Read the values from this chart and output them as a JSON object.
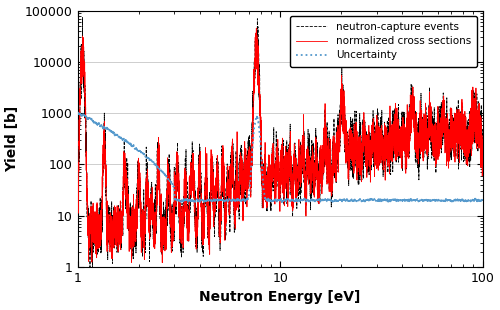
{
  "xlabel": "Neutron Energy [eV]",
  "ylabel": "Yield [b]",
  "xlim": [
    1,
    100
  ],
  "ylim": [
    1,
    100000
  ],
  "legend": {
    "red_solid": "normalized cross sections",
    "black_dashed": "neutron-capture events",
    "blue_dotted": "Uncertainty"
  },
  "line_colors": {
    "red": "#ff0000",
    "black": "#000000",
    "blue": "#5599cc"
  },
  "background": "#ffffff",
  "grid_color": "#bbbbbb",
  "figsize": [
    5.0,
    3.1
  ],
  "dpi": 100
}
